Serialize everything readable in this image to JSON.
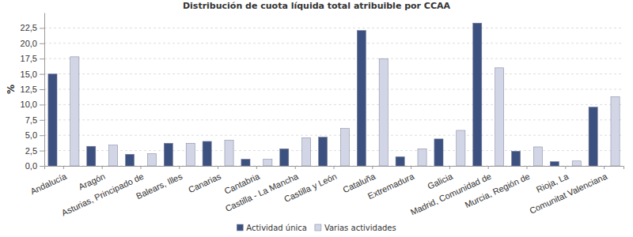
{
  "chart_data": {
    "type": "bar",
    "title": "Distribución de cuota líquida total atribuible por CCAA",
    "y_label": "%",
    "categories": [
      "Andalucía",
      "Aragón",
      "Asturias, Principado de",
      "Balears, Illes",
      "Canarias",
      "Cantabria",
      "Castilla - La Mancha",
      "Castilla y León",
      "Cataluña",
      "Extremadura",
      "Galicia",
      "Madrid, Comunidad de",
      "Murcia, Región de",
      "Rioja, La",
      "Comunitat Valenciana"
    ],
    "series": [
      {
        "name": "Actividad única",
        "color": "#3d5181",
        "values": [
          15.0,
          3.2,
          1.9,
          3.7,
          4.0,
          1.1,
          2.8,
          4.7,
          22.1,
          1.5,
          4.4,
          23.3,
          2.4,
          0.7,
          9.6
        ]
      },
      {
        "name": "Varias actividades",
        "color": "#d1d5e6",
        "values": [
          17.8,
          3.4,
          2.0,
          3.7,
          4.2,
          1.1,
          4.6,
          6.1,
          17.5,
          2.8,
          5.8,
          16.0,
          3.1,
          0.8,
          11.3
        ]
      }
    ],
    "ylim": [
      0,
      25
    ],
    "yticks": [
      {
        "value": 0,
        "label": "0,0"
      },
      {
        "value": 2.5,
        "label": "2,5"
      },
      {
        "value": 5,
        "label": "5,0"
      },
      {
        "value": 7.5,
        "label": "7,5"
      },
      {
        "value": 10,
        "label": "10,0"
      },
      {
        "value": 12.5,
        "label": "12,5"
      },
      {
        "value": 15,
        "label": "15,0"
      },
      {
        "value": 17.5,
        "label": "17,5"
      },
      {
        "value": 20,
        "label": "20,0"
      },
      {
        "value": 22.5,
        "label": "22,5"
      }
    ],
    "grid": true,
    "legend": "bottom"
  }
}
